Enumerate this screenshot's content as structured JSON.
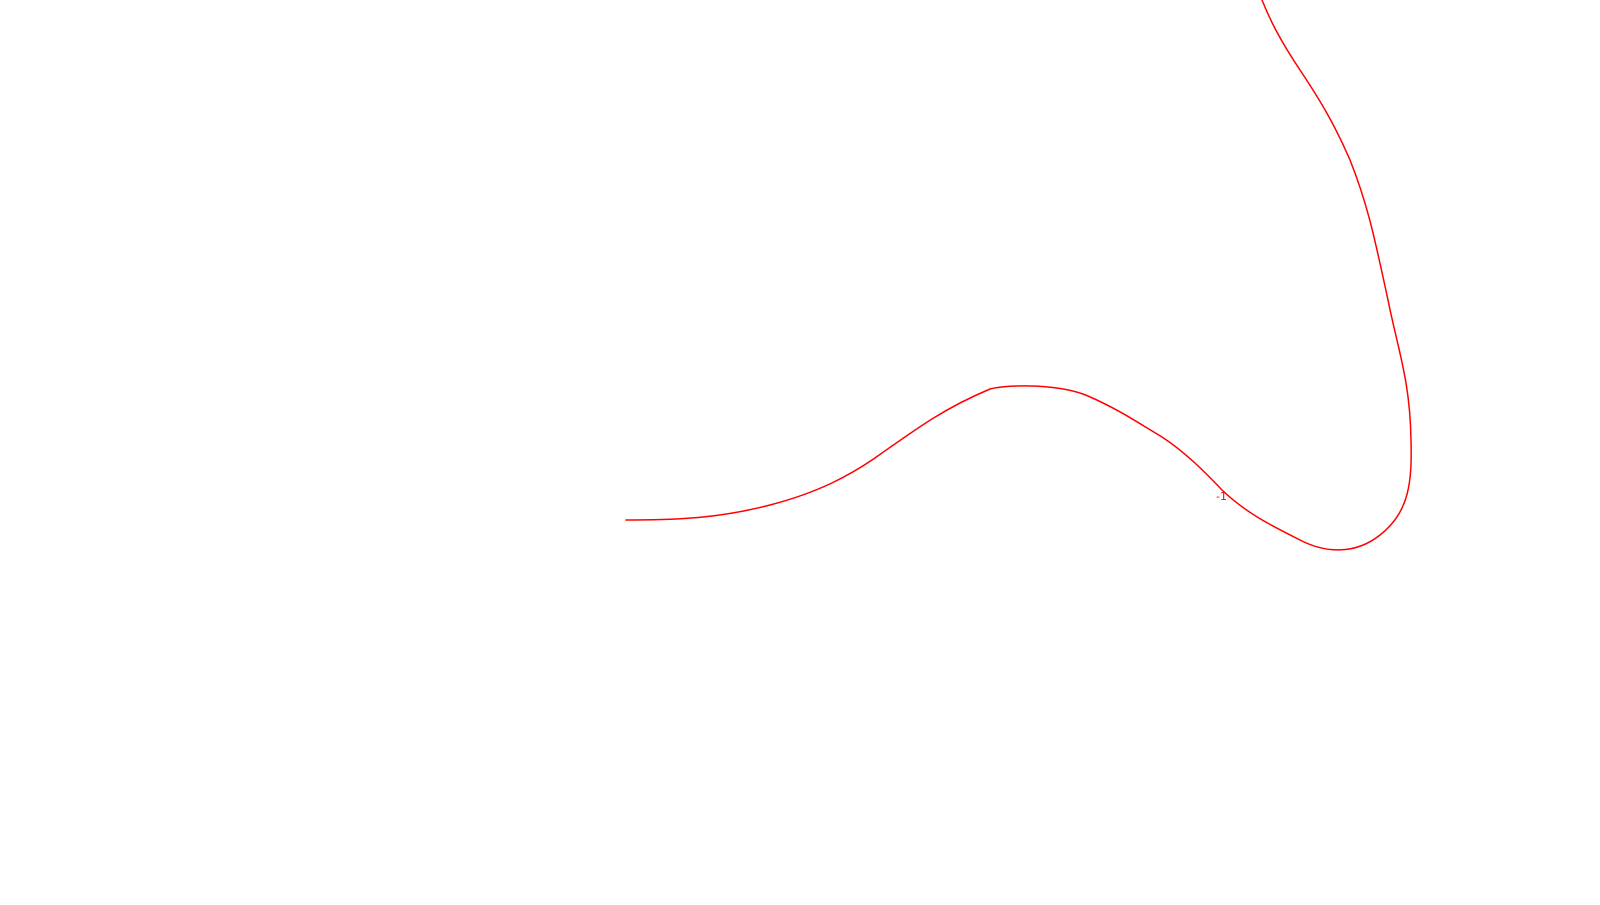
{
  "curve": {
    "color": "#ff0000",
    "label": "-1"
  }
}
